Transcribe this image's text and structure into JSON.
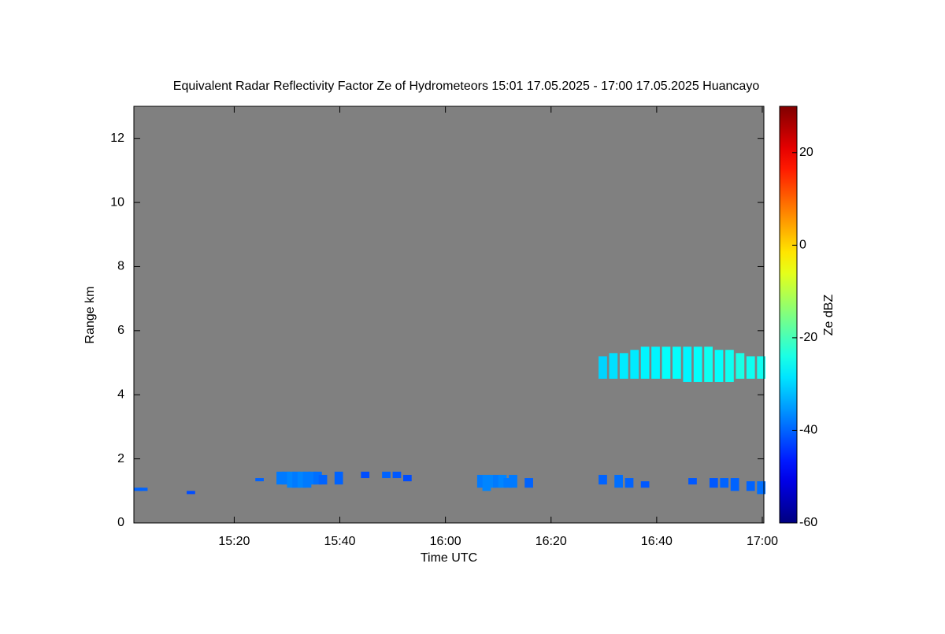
{
  "chart_data": {
    "type": "heatmap",
    "title": "Equivalent Radar Reflectivity Factor Ze of Hydrometeors   15:01 17.05.2025 - 17:00 17.05.2025 Huancayo",
    "x_label": "Time UTC",
    "y_label": "Range km",
    "colorbar_label": "Ze dBZ",
    "background": "#808080",
    "xlim": [
      "15:01",
      "17:00"
    ],
    "xticks": [
      "15:20",
      "15:40",
      "16:00",
      "16:20",
      "16:40",
      "17:00"
    ],
    "ylim": [
      0,
      13
    ],
    "yticks": [
      0,
      2,
      4,
      6,
      8,
      10,
      12
    ],
    "clim": [
      -60,
      30
    ],
    "cticks": [
      -60,
      -40,
      -20,
      0,
      20
    ],
    "colormap": "jet",
    "x": [
      "15:01",
      "15:02",
      "15:11",
      "15:24",
      "15:28",
      "15:29",
      "15:30",
      "15:31",
      "15:32",
      "15:33",
      "15:34",
      "15:35",
      "15:36",
      "15:39",
      "15:44",
      "15:48",
      "15:50",
      "15:52",
      "16:06",
      "16:07",
      "16:08",
      "16:09",
      "16:10",
      "16:11",
      "16:12",
      "16:15",
      "16:29",
      "16:32",
      "16:34",
      "16:37",
      "16:46",
      "16:50",
      "16:52",
      "16:54",
      "16:57",
      "16:59",
      "16:29",
      "16:31",
      "16:33",
      "16:35",
      "16:37",
      "16:39",
      "16:41",
      "16:43",
      "16:45",
      "16:47",
      "16:49",
      "16:51",
      "16:53",
      "16:55",
      "16:57",
      "16:59"
    ],
    "y_bottom": [
      1.0,
      1.0,
      0.9,
      1.3,
      1.2,
      1.2,
      1.1,
      1.1,
      1.1,
      1.1,
      1.2,
      1.2,
      1.2,
      1.2,
      1.4,
      1.4,
      1.4,
      1.3,
      1.1,
      1.0,
      1.1,
      1.1,
      1.1,
      1.1,
      1.1,
      1.1,
      1.2,
      1.1,
      1.1,
      1.1,
      1.2,
      1.1,
      1.1,
      1.0,
      1.0,
      0.9,
      4.5,
      4.5,
      4.5,
      4.5,
      4.5,
      4.5,
      4.5,
      4.5,
      4.4,
      4.4,
      4.4,
      4.4,
      4.4,
      4.5,
      4.5,
      4.5
    ],
    "y_top": [
      1.1,
      1.1,
      1.0,
      1.4,
      1.6,
      1.6,
      1.6,
      1.6,
      1.6,
      1.6,
      1.6,
      1.6,
      1.5,
      1.6,
      1.6,
      1.6,
      1.6,
      1.5,
      1.5,
      1.5,
      1.5,
      1.5,
      1.5,
      1.4,
      1.5,
      1.4,
      1.5,
      1.5,
      1.4,
      1.3,
      1.4,
      1.4,
      1.4,
      1.4,
      1.3,
      1.3,
      5.2,
      5.3,
      5.3,
      5.4,
      5.5,
      5.5,
      5.5,
      5.5,
      5.5,
      5.5,
      5.5,
      5.4,
      5.4,
      5.3,
      5.2,
      5.2
    ],
    "values": [
      -40,
      -40,
      -42,
      -40,
      -38,
      -38,
      -37,
      -38,
      -37,
      -38,
      -38,
      -39,
      -40,
      -40,
      -42,
      -40,
      -41,
      -42,
      -38,
      -37,
      -37,
      -38,
      -37,
      -38,
      -38,
      -40,
      -40,
      -39,
      -40,
      -41,
      -41,
      -41,
      -40,
      -40,
      -40,
      -39,
      -30,
      -29,
      -28,
      -28,
      -27,
      -27,
      -26,
      -26,
      -27,
      -26,
      -25,
      -26,
      -25,
      -24,
      -25,
      -25
    ]
  }
}
